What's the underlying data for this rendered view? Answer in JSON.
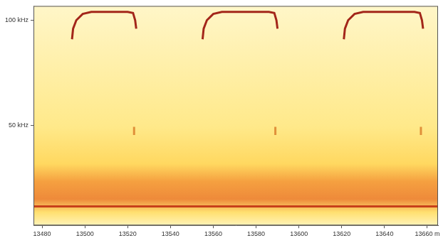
{
  "chart_data": {
    "type": "line",
    "xlim": [
      13476,
      13665
    ],
    "ylim": [
      2.6,
      106.8
    ],
    "xticks": [
      13480,
      13500,
      13520,
      13540,
      13560,
      13580,
      13600,
      13620,
      13640,
      {
        "value": 13660,
        "label": "13660 m"
      }
    ],
    "yticks": [
      {
        "value": 50,
        "label": "50 kHz"
      },
      {
        "value": 100,
        "label": "100 kHz"
      }
    ],
    "grid": false,
    "series": [
      {
        "color": "#a3261a",
        "x": [
          13494,
          13494.5,
          13496,
          13499,
          13503,
          13520,
          13522.5,
          13523.5,
          13524
        ],
        "values": [
          91,
          96,
          100,
          103,
          104,
          104,
          103.5,
          100,
          96
        ]
      },
      {
        "color": "#a3261a",
        "x": [
          13555,
          13555.5,
          13557,
          13560,
          13564,
          13586,
          13588.5,
          13589.5,
          13590
        ],
        "values": [
          91,
          96,
          100,
          103,
          104,
          104,
          103.5,
          100,
          96
        ]
      },
      {
        "color": "#a3261a",
        "x": [
          13621,
          13621.5,
          13623,
          13626,
          13630,
          13654,
          13656.5,
          13657.5,
          13658
        ],
        "values": [
          91,
          96,
          100,
          103,
          104,
          104,
          103.5,
          100,
          96
        ]
      },
      {
        "color": "#e0903a",
        "x": [
          13523,
          13523
        ],
        "values": [
          49.4,
          45.5
        ]
      },
      {
        "color": "#e0903a",
        "x": [
          13589,
          13589
        ],
        "values": [
          49.4,
          45.5
        ]
      },
      {
        "color": "#e0903a",
        "x": [
          13657,
          13657
        ],
        "values": [
          49.4,
          45.5
        ]
      },
      {
        "color": "#c8401a",
        "x": [
          13476,
          13665
        ],
        "values": [
          11.6,
          11.6
        ]
      }
    ]
  }
}
